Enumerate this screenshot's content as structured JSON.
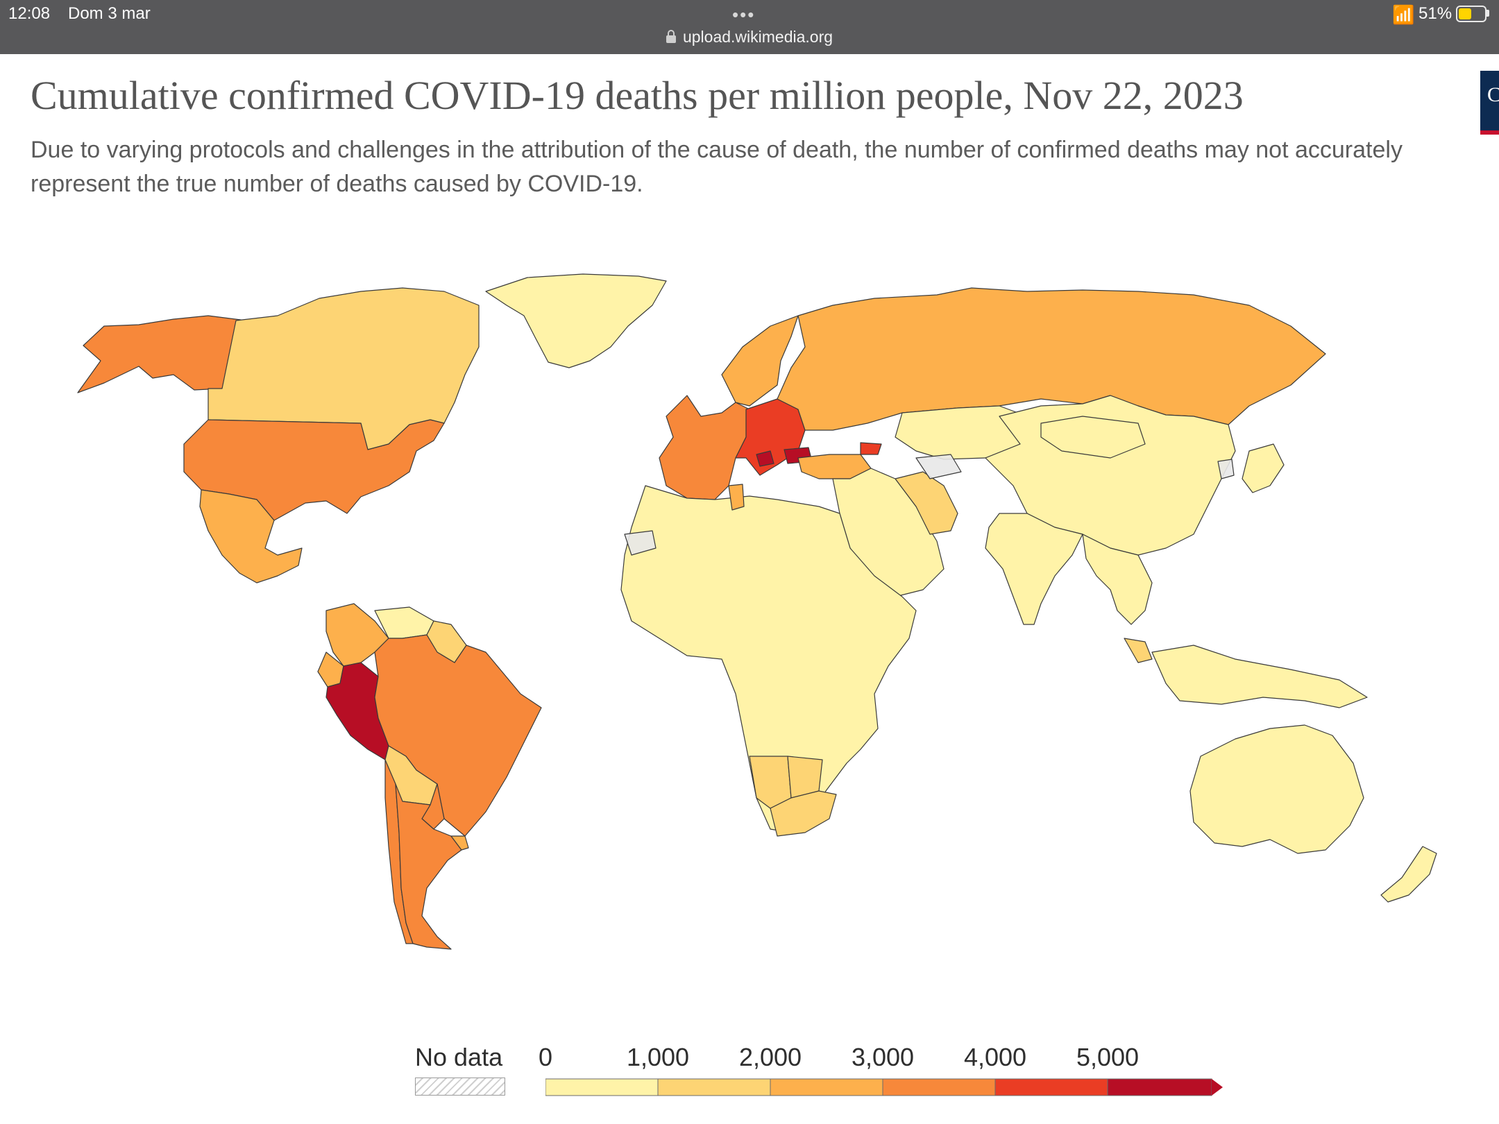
{
  "status_bar": {
    "time": "12:08",
    "date": "Dom 3 mar",
    "battery": "51%",
    "battery_level": 0.51
  },
  "browser": {
    "url": "upload.wikimedia.org",
    "menu_dots": "•••"
  },
  "chart": {
    "title": "Cumulative confirmed COVID-19 deaths per million people, Nov 22, 2023",
    "subtitle": "Due to varying protocols and challenges in the attribution of the cause of death, the number of confirmed deaths may not accurately represent the true number of deaths caused by COVID-19.",
    "logo_letter": "C"
  },
  "legend": {
    "no_data_label": "No data",
    "ticks": [
      "0",
      "1,000",
      "2,000",
      "3,000",
      "4,000",
      "5,000"
    ],
    "bins": [
      {
        "min": 0,
        "max": 1000,
        "color": "#fff3a8"
      },
      {
        "min": 1000,
        "max": 2000,
        "color": "#fdd474"
      },
      {
        "min": 2000,
        "max": 3000,
        "color": "#fdb04c"
      },
      {
        "min": 3000,
        "max": 4000,
        "color": "#f7883a"
      },
      {
        "min": 4000,
        "max": 5000,
        "color": "#ea3d24"
      },
      {
        "min": 5000,
        "max": null,
        "color": "#b70e25"
      }
    ],
    "no_data_color": "#e8e8e8"
  },
  "chart_data": {
    "type": "choropleth",
    "metric": "Cumulative confirmed COVID-19 deaths per million people",
    "date": "Nov 22, 2023",
    "scale_bins": [
      "0-1,000",
      "1,000-2,000",
      "2,000-3,000",
      "3,000-4,000",
      "4,000-5,000",
      "5,000+"
    ],
    "regions": [
      {
        "name": "Canada",
        "bin": "1,000-2,000"
      },
      {
        "name": "United States",
        "bin": "3,000-4,000"
      },
      {
        "name": "Mexico",
        "bin": "2,000-3,000"
      },
      {
        "name": "Greenland",
        "bin": "0-1,000"
      },
      {
        "name": "Alaska",
        "bin": "3,000-4,000"
      },
      {
        "name": "Colombia",
        "bin": "2,000-3,000"
      },
      {
        "name": "Venezuela",
        "bin": "0-1,000"
      },
      {
        "name": "Guyana",
        "bin": "1,000-2,000"
      },
      {
        "name": "Ecuador",
        "bin": "2,000-3,000"
      },
      {
        "name": "Peru",
        "bin": "5,000+"
      },
      {
        "name": "Bolivia",
        "bin": "1,000-2,000"
      },
      {
        "name": "Brazil",
        "bin": "3,000-4,000"
      },
      {
        "name": "Paraguay",
        "bin": "3,000-4,000"
      },
      {
        "name": "Chile",
        "bin": "3,000-4,000"
      },
      {
        "name": "Argentina",
        "bin": "3,000-4,000"
      },
      {
        "name": "Uruguay",
        "bin": "2,000-3,000"
      },
      {
        "name": "Western Europe",
        "bin": "3,000-4,000"
      },
      {
        "name": "Central Europe",
        "bin": "4,000-5,000"
      },
      {
        "name": "Bulgaria",
        "bin": "5,000+"
      },
      {
        "name": "Bosnia and Herzegovina",
        "bin": "5,000+"
      },
      {
        "name": "Scandinavia",
        "bin": "2,000-3,000"
      },
      {
        "name": "Russia",
        "bin": "2,000-3,000"
      },
      {
        "name": "Kazakhstan",
        "bin": "0-1,000"
      },
      {
        "name": "Turkey",
        "bin": "2,000-3,000"
      },
      {
        "name": "Georgia",
        "bin": "4,000-5,000"
      },
      {
        "name": "Iran",
        "bin": "1,000-2,000"
      },
      {
        "name": "Middle East",
        "bin": "0-1,000"
      },
      {
        "name": "China",
        "bin": "0-1,000"
      },
      {
        "name": "Mongolia",
        "bin": "0-1,000"
      },
      {
        "name": "Japan",
        "bin": "0-1,000"
      },
      {
        "name": "India",
        "bin": "0-1,000"
      },
      {
        "name": "Southeast Asia",
        "bin": "0-1,000"
      },
      {
        "name": "Malaysia",
        "bin": "1,000-2,000"
      },
      {
        "name": "Indonesia",
        "bin": "0-1,000"
      },
      {
        "name": "Australia",
        "bin": "0-1,000"
      },
      {
        "name": "New Zealand",
        "bin": "0-1,000"
      },
      {
        "name": "Africa",
        "bin": "0-1,000"
      },
      {
        "name": "Tunisia",
        "bin": "2,000-3,000"
      },
      {
        "name": "Namibia",
        "bin": "1,000-2,000"
      },
      {
        "name": "Botswana",
        "bin": "1,000-2,000"
      },
      {
        "name": "South Africa",
        "bin": "1,000-2,000"
      },
      {
        "name": "Western Sahara",
        "bin": "No data"
      },
      {
        "name": "Turkmenistan",
        "bin": "No data"
      },
      {
        "name": "North Korea",
        "bin": "No data"
      }
    ]
  }
}
